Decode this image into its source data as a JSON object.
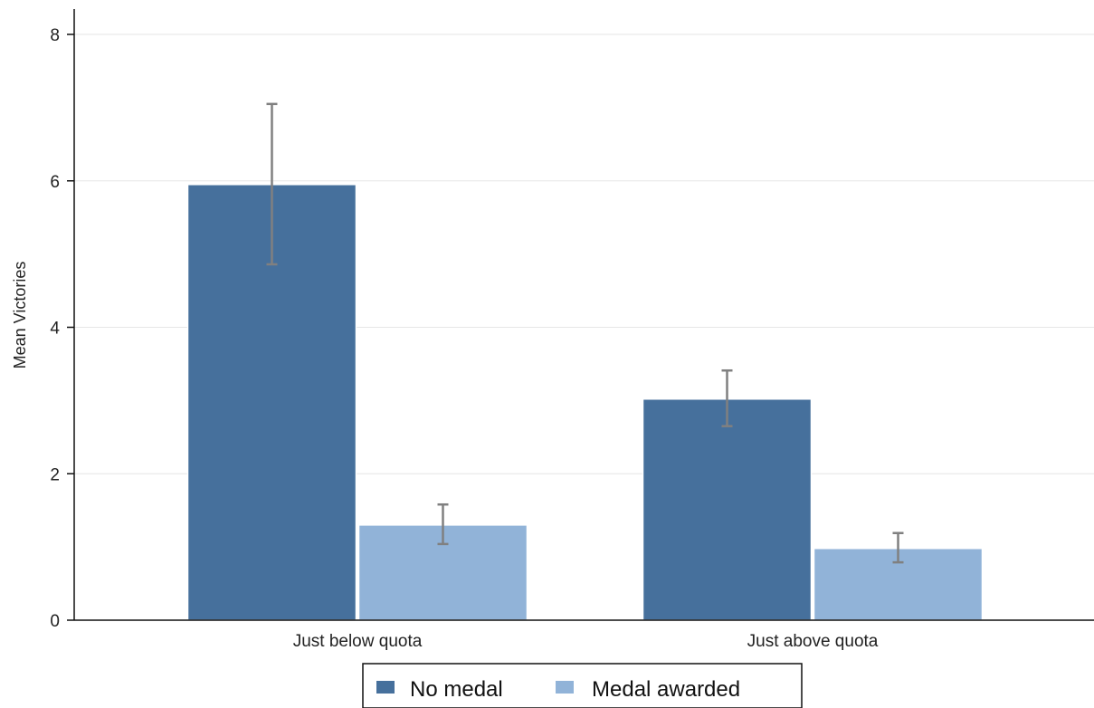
{
  "chart_data": {
    "type": "bar",
    "categories": [
      "Just below quota",
      "Just above quota"
    ],
    "series": [
      {
        "name": "No medal",
        "values": [
          5.95,
          3.02
        ],
        "ci_low": [
          4.86,
          2.65
        ],
        "ci_high": [
          7.05,
          3.41
        ],
        "color": "#46709c"
      },
      {
        "name": "Medal awarded",
        "values": [
          1.3,
          0.98
        ],
        "ci_low": [
          1.04,
          0.79
        ],
        "ci_high": [
          1.58,
          1.19
        ],
        "color": "#91b3d8"
      }
    ],
    "title": "",
    "xlabel": "",
    "ylabel": "Mean Victories",
    "ylim": [
      0,
      8
    ],
    "yticks": [
      "0",
      "2",
      "4",
      "6",
      "8"
    ],
    "grid": true,
    "legend_position": "bottom",
    "errorbar_color": "#808080"
  }
}
